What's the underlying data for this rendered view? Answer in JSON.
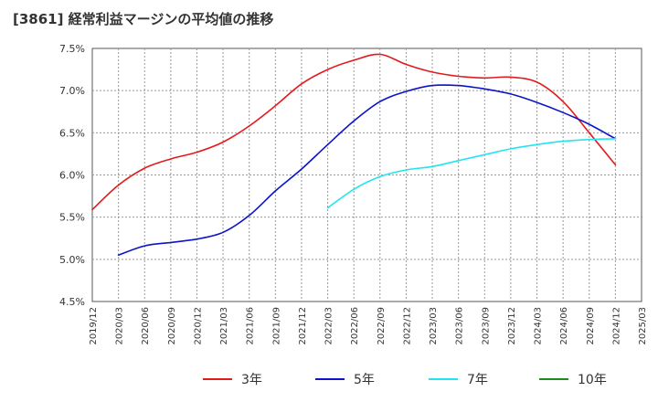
{
  "chart_data": {
    "type": "line",
    "title": "[3861]  経常利益マージンの平均値の推移",
    "xlabel": "",
    "ylabel": "",
    "ylim": [
      4.5,
      7.5
    ],
    "y_ticks": [
      "7.5%",
      "7.0%",
      "6.5%",
      "6.0%",
      "5.5%",
      "5.0%",
      "4.5%"
    ],
    "y_tick_values": [
      7.5,
      7.0,
      6.5,
      6.0,
      5.5,
      5.0,
      4.5
    ],
    "x_ticks": [
      "2019/12",
      "2020/03",
      "2020/06",
      "2020/09",
      "2020/12",
      "2021/03",
      "2021/06",
      "2021/09",
      "2021/12",
      "2022/03",
      "2022/06",
      "2022/09",
      "2022/12",
      "2023/03",
      "2023/06",
      "2023/09",
      "2023/12",
      "2024/03",
      "2024/06",
      "2024/09",
      "2024/12",
      "2025/03"
    ],
    "grid": true,
    "legend_position": "bottom",
    "series": [
      {
        "name": "3年",
        "color": "#e31a1c",
        "x": [
          "2019/12",
          "2020/03",
          "2020/06",
          "2020/09",
          "2020/12",
          "2021/03",
          "2021/06",
          "2021/09",
          "2021/12",
          "2022/03",
          "2022/06",
          "2022/09",
          "2022/12",
          "2023/03",
          "2023/06",
          "2023/09",
          "2023/12",
          "2024/03",
          "2024/06",
          "2024/09",
          "2024/12"
        ],
        "values": [
          5.59,
          5.88,
          6.08,
          6.19,
          6.27,
          6.39,
          6.58,
          6.82,
          7.08,
          7.25,
          7.36,
          7.43,
          7.31,
          7.22,
          7.17,
          7.15,
          7.16,
          7.1,
          6.87,
          6.5,
          6.12
        ]
      },
      {
        "name": "5年",
        "color": "#0a14c8",
        "x": [
          "2020/03",
          "2020/06",
          "2020/09",
          "2020/12",
          "2021/03",
          "2021/06",
          "2021/09",
          "2021/12",
          "2022/03",
          "2022/06",
          "2022/09",
          "2022/12",
          "2023/03",
          "2023/06",
          "2023/09",
          "2023/12",
          "2024/03",
          "2024/06",
          "2024/09",
          "2024/12"
        ],
        "values": [
          5.05,
          5.16,
          5.2,
          5.24,
          5.32,
          5.52,
          5.81,
          6.07,
          6.36,
          6.64,
          6.87,
          6.99,
          7.06,
          7.06,
          7.02,
          6.96,
          6.86,
          6.74,
          6.6,
          6.43
        ]
      },
      {
        "name": "7年",
        "color": "#22e4f0",
        "x": [
          "2022/03",
          "2022/06",
          "2022/09",
          "2022/12",
          "2023/03",
          "2023/06",
          "2023/09",
          "2023/12",
          "2024/03",
          "2024/06",
          "2024/09",
          "2024/12"
        ],
        "values": [
          5.61,
          5.83,
          5.98,
          6.06,
          6.1,
          6.17,
          6.24,
          6.31,
          6.36,
          6.4,
          6.42,
          6.43
        ]
      },
      {
        "name": "10年",
        "color": "#1e8c1e",
        "x": [],
        "values": []
      }
    ]
  }
}
